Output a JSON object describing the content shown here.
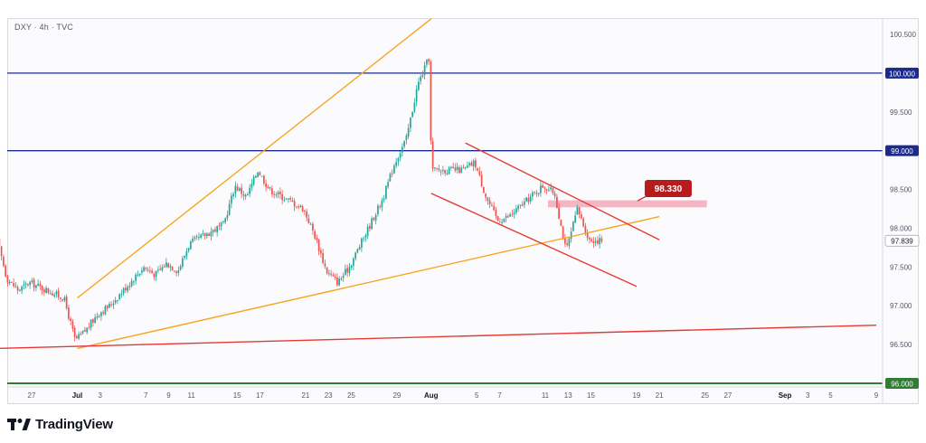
{
  "chart_data": {
    "type": "candlestick",
    "title": "DXY · 4h · TVC",
    "price_axis": {
      "range": [
        95.95,
        100.65
      ],
      "ticks": [
        "100.500",
        "100.000",
        "99.500",
        "99.000",
        "98.500",
        "98.000",
        "97.500",
        "97.000",
        "96.500",
        "96.000"
      ],
      "highlighted_levels": [
        {
          "label": "100.000",
          "value": 100.0,
          "color": "#1b2a8c"
        },
        {
          "label": "99.000",
          "value": 99.0,
          "color": "#1b2a8c"
        },
        {
          "label": "96.000",
          "value": 96.0,
          "color": "#2f7d32"
        }
      ],
      "last_price": {
        "label": "97.839",
        "value": 97.839
      }
    },
    "time_axis": {
      "ticks": [
        "27",
        "Jul",
        "3",
        "7",
        "9",
        "11",
        "15",
        "17",
        "21",
        "23",
        "25",
        "29",
        "Aug",
        "5",
        "7",
        "11",
        "13",
        "15",
        "19",
        "21",
        "25",
        "27",
        "Sep",
        "3",
        "5",
        "9"
      ],
      "bold_ticks": [
        "Jul",
        "Aug",
        "Sep"
      ],
      "tick_dates": [
        "2025-06-27",
        "2025-07-01",
        "2025-07-03",
        "2025-07-07",
        "2025-07-09",
        "2025-07-11",
        "2025-07-15",
        "2025-07-17",
        "2025-07-21",
        "2025-07-23",
        "2025-07-25",
        "2025-07-29",
        "2025-08-01",
        "2025-08-05",
        "2025-08-07",
        "2025-08-11",
        "2025-08-13",
        "2025-08-15",
        "2025-08-19",
        "2025-08-21",
        "2025-08-25",
        "2025-08-27",
        "2025-09-01",
        "2025-09-03",
        "2025-09-05",
        "2025-09-09"
      ]
    },
    "price_path": [
      [
        "2025-06-24",
        97.95
      ],
      [
        "2025-06-25",
        97.35
      ],
      [
        "2025-06-26",
        97.2
      ],
      [
        "2025-06-27",
        97.3
      ],
      [
        "2025-06-30",
        97.1
      ],
      [
        "2025-07-01",
        96.55
      ],
      [
        "2025-07-02",
        96.7
      ],
      [
        "2025-07-03",
        96.9
      ],
      [
        "2025-07-04",
        97.0
      ],
      [
        "2025-07-07",
        97.5
      ],
      [
        "2025-07-08",
        97.4
      ],
      [
        "2025-07-09",
        97.55
      ],
      [
        "2025-07-10",
        97.45
      ],
      [
        "2025-07-11",
        97.8
      ],
      [
        "2025-07-14",
        98.05
      ],
      [
        "2025-07-15",
        98.55
      ],
      [
        "2025-07-16",
        98.4
      ],
      [
        "2025-07-17",
        98.75
      ],
      [
        "2025-07-18",
        98.5
      ],
      [
        "2025-07-21",
        98.25
      ],
      [
        "2025-07-22",
        97.9
      ],
      [
        "2025-07-23",
        97.45
      ],
      [
        "2025-07-24",
        97.3
      ],
      [
        "2025-07-25",
        97.5
      ],
      [
        "2025-07-28",
        98.4
      ],
      [
        "2025-07-29",
        98.85
      ],
      [
        "2025-07-30",
        99.15
      ],
      [
        "2025-07-31",
        99.85
      ],
      [
        "2025-08-01",
        100.2
      ],
      [
        "2025-08-01",
        98.75
      ],
      [
        "2025-08-04",
        98.75
      ],
      [
        "2025-08-05",
        98.85
      ],
      [
        "2025-08-06",
        98.4
      ],
      [
        "2025-08-07",
        98.1
      ],
      [
        "2025-08-08",
        98.15
      ],
      [
        "2025-08-11",
        98.55
      ],
      [
        "2025-08-12",
        98.45
      ],
      [
        "2025-08-13",
        97.7
      ],
      [
        "2025-08-14",
        98.25
      ],
      [
        "2025-08-15",
        97.85
      ],
      [
        "2025-08-16",
        97.84
      ]
    ],
    "annotations": [
      {
        "type": "price_label",
        "text": "98.330",
        "value": 98.33
      },
      {
        "type": "horizontal_zone",
        "name": "resistance zone",
        "low": 98.27,
        "high": 98.36,
        "color": "#f4a8b8"
      },
      {
        "type": "trendline",
        "name": "rising resistance",
        "color": "#f5a623",
        "points": [
          [
            "2025-07-01",
            97.1
          ],
          [
            "2025-08-01",
            100.7
          ]
        ]
      },
      {
        "type": "trendline",
        "name": "rising support",
        "color": "#f5a623",
        "points": [
          [
            "2025-07-01",
            96.45
          ],
          [
            "2025-08-21",
            98.15
          ]
        ]
      },
      {
        "type": "trendline",
        "name": "long-term support",
        "color": "#e53935",
        "points": [
          [
            "2025-06-24",
            96.45
          ],
          [
            "2025-09-09",
            96.75
          ]
        ]
      },
      {
        "type": "trendline",
        "name": "channel top",
        "color": "#e53935",
        "points": [
          [
            "2025-08-04",
            99.1
          ],
          [
            "2025-08-21",
            97.85
          ]
        ]
      },
      {
        "type": "trendline",
        "name": "channel bottom",
        "color": "#e53935",
        "points": [
          [
            "2025-08-01",
            98.45
          ],
          [
            "2025-08-19",
            97.25
          ]
        ]
      }
    ],
    "colors": {
      "up": "#26a69a",
      "down": "#ef5350",
      "band_zone": "#f4a8b8",
      "label_bg": "#b71c1c"
    }
  },
  "branding": {
    "logo_text": "TradingView"
  }
}
